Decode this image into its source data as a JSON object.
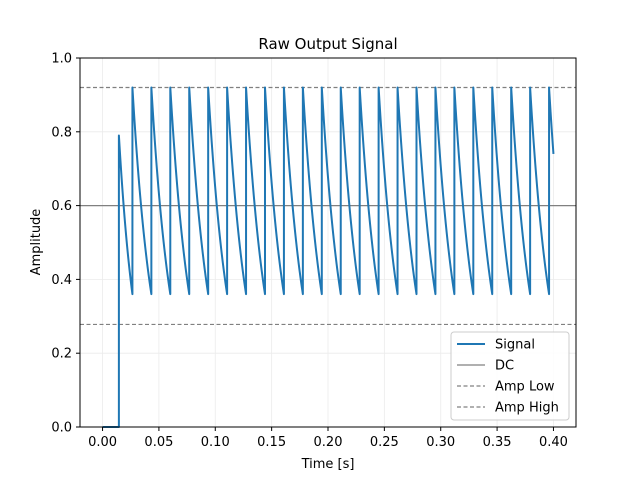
{
  "chart_data": {
    "type": "line",
    "title": "Raw Output Signal",
    "xlabel": "Time [s]",
    "ylabel": "Amplitude",
    "xlim": [
      -0.02,
      0.42
    ],
    "ylim": [
      0.0,
      1.0
    ],
    "xticks": [
      0.0,
      0.05,
      0.1,
      0.15,
      0.2,
      0.25,
      0.3,
      0.35,
      0.4
    ],
    "xtick_labels": [
      "0.00",
      "0.05",
      "0.10",
      "0.15",
      "0.20",
      "0.25",
      "0.30",
      "0.35",
      "0.40"
    ],
    "yticks": [
      0.0,
      0.2,
      0.4,
      0.6,
      0.8,
      1.0
    ],
    "ytick_labels": [
      "0.0",
      "0.2",
      "0.4",
      "0.6",
      "0.8",
      "1.0"
    ],
    "grid": true,
    "legend_position": "lower-right",
    "signal": {
      "name": "Signal",
      "color": "#1f77b4",
      "start_x": 0.0,
      "end_x": 0.4,
      "turn_on_x": 0.0145,
      "first_peak": 0.79,
      "first_peak_x": 0.0145,
      "first_decay_end_x": 0.0265,
      "peak": 0.92,
      "trough": 0.36,
      "period": 0.0168,
      "peak_times": [
        0.0265,
        0.0433,
        0.0601,
        0.0769,
        0.0937,
        0.1105,
        0.1273,
        0.1441,
        0.1609,
        0.1777,
        0.1945,
        0.2113,
        0.2281,
        0.2449,
        0.2617,
        0.2785,
        0.2953,
        0.3121,
        0.3289,
        0.3457,
        0.3625,
        0.3793,
        0.3961
      ],
      "end_value": 0.655
    },
    "reference_lines": [
      {
        "name": "DC",
        "value": 0.6,
        "style": "solid",
        "color": "#808080"
      },
      {
        "name": "Amp Low",
        "value": 0.278,
        "style": "dashed",
        "color": "#808080"
      },
      {
        "name": "Amp High",
        "value": 0.92,
        "style": "dashed",
        "color": "#808080"
      }
    ],
    "legend": [
      "Signal",
      "DC",
      "Amp Low",
      "Amp High"
    ]
  }
}
